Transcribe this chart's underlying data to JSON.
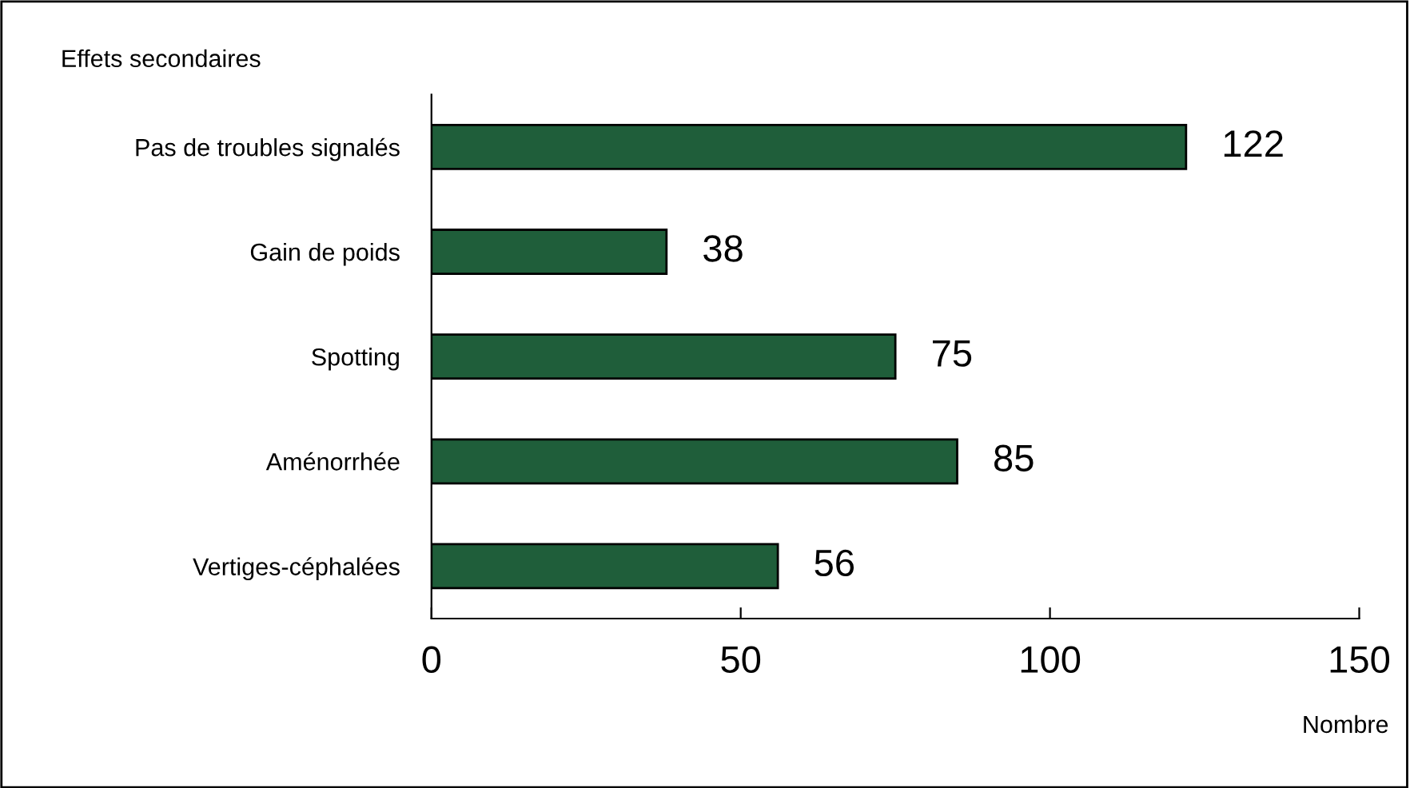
{
  "chart_data": {
    "type": "bar",
    "orientation": "horizontal",
    "title": "Effets secondaires",
    "xlabel": "Nombre",
    "categories": [
      "Pas de troubles signalés",
      "Gain de poids",
      "Spotting",
      "Aménorrhée",
      "Vertiges-céphalées"
    ],
    "values": [
      122,
      38,
      75,
      85,
      56
    ],
    "color": "#1f5e3a",
    "data_labels": true,
    "xlim": [
      0,
      150
    ],
    "xticks": [
      0,
      50,
      100,
      150
    ],
    "grid": false
  }
}
